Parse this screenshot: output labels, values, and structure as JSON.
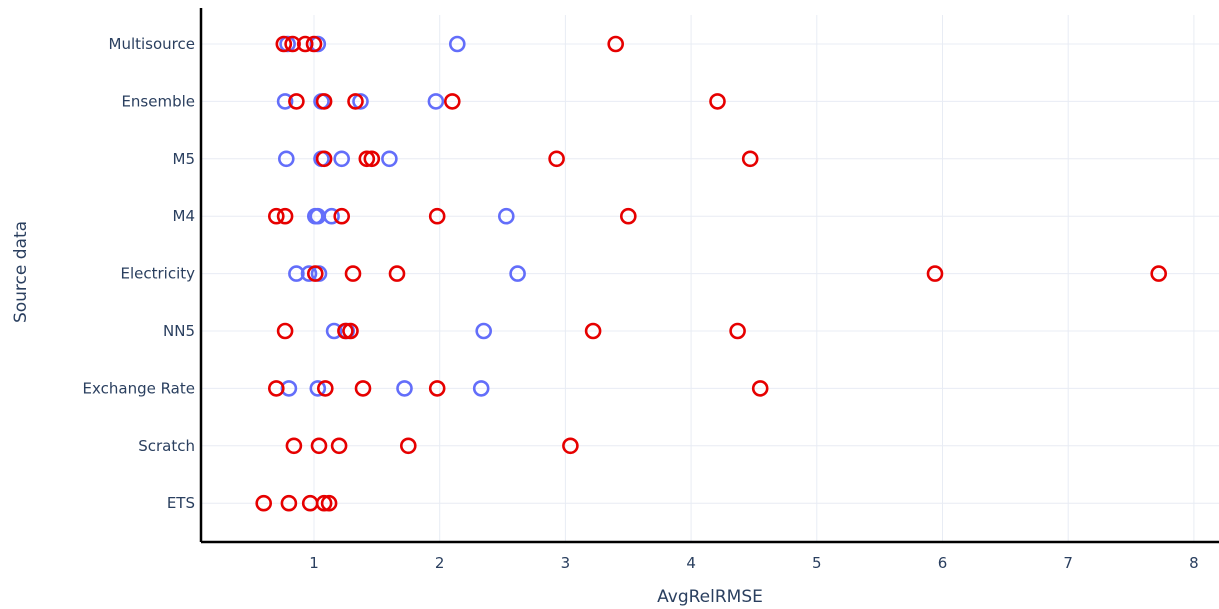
{
  "chart_data": {
    "type": "scatter",
    "title": "",
    "xlabel": "AvgRelRMSE",
    "ylabel": "Source data",
    "xlim": [
      0.1,
      8.2
    ],
    "x_ticks": [
      1,
      2,
      3,
      4,
      5,
      6,
      7,
      8
    ],
    "grid": true,
    "legend": "none",
    "categories": [
      "ETS",
      "Scratch",
      "Exchange Rate",
      "NN5",
      "Electricity",
      "M4",
      "M5",
      "Ensemble",
      "Multisource"
    ],
    "colors": {
      "blue": "#636efa",
      "red": "#e60000"
    },
    "series": [
      {
        "color": "#636efa",
        "points": [
          {
            "category": "Multisource",
            "x": 0.79
          },
          {
            "category": "Multisource",
            "x": 1.03
          },
          {
            "category": "Multisource",
            "x": 2.14
          },
          {
            "category": "Ensemble",
            "x": 0.77
          },
          {
            "category": "Ensemble",
            "x": 1.06
          },
          {
            "category": "Ensemble",
            "x": 1.37
          },
          {
            "category": "Ensemble",
            "x": 1.97
          },
          {
            "category": "M5",
            "x": 0.78
          },
          {
            "category": "M5",
            "x": 1.06
          },
          {
            "category": "M5",
            "x": 1.22
          },
          {
            "category": "M5",
            "x": 1.6
          },
          {
            "category": "M4",
            "x": 1.01
          },
          {
            "category": "M4",
            "x": 1.03
          },
          {
            "category": "M4",
            "x": 1.14
          },
          {
            "category": "M4",
            "x": 2.53
          },
          {
            "category": "Electricity",
            "x": 0.86
          },
          {
            "category": "Electricity",
            "x": 0.96
          },
          {
            "category": "Electricity",
            "x": 1.04
          },
          {
            "category": "Electricity",
            "x": 2.62
          },
          {
            "category": "NN5",
            "x": 1.16
          },
          {
            "category": "NN5",
            "x": 1.26
          },
          {
            "category": "NN5",
            "x": 2.35
          },
          {
            "category": "Exchange Rate",
            "x": 0.8
          },
          {
            "category": "Exchange Rate",
            "x": 1.03
          },
          {
            "category": "Exchange Rate",
            "x": 1.72
          },
          {
            "category": "Exchange Rate",
            "x": 2.33
          }
        ]
      },
      {
        "color": "#e60000",
        "points": [
          {
            "category": "Multisource",
            "x": 0.76
          },
          {
            "category": "Multisource",
            "x": 0.83
          },
          {
            "category": "Multisource",
            "x": 0.93
          },
          {
            "category": "Multisource",
            "x": 1.0
          },
          {
            "category": "Multisource",
            "x": 3.4
          },
          {
            "category": "Ensemble",
            "x": 0.86
          },
          {
            "category": "Ensemble",
            "x": 1.08
          },
          {
            "category": "Ensemble",
            "x": 1.33
          },
          {
            "category": "Ensemble",
            "x": 2.1
          },
          {
            "category": "Ensemble",
            "x": 4.21
          },
          {
            "category": "M5",
            "x": 1.08
          },
          {
            "category": "M5",
            "x": 1.42
          },
          {
            "category": "M5",
            "x": 1.46
          },
          {
            "category": "M5",
            "x": 2.93
          },
          {
            "category": "M5",
            "x": 4.47
          },
          {
            "category": "M4",
            "x": 0.7
          },
          {
            "category": "M4",
            "x": 0.77
          },
          {
            "category": "M4",
            "x": 1.22
          },
          {
            "category": "M4",
            "x": 1.98
          },
          {
            "category": "M4",
            "x": 3.5
          },
          {
            "category": "Electricity",
            "x": 1.01
          },
          {
            "category": "Electricity",
            "x": 1.31
          },
          {
            "category": "Electricity",
            "x": 1.66
          },
          {
            "category": "Electricity",
            "x": 5.94
          },
          {
            "category": "Electricity",
            "x": 7.72
          },
          {
            "category": "NN5",
            "x": 0.77
          },
          {
            "category": "NN5",
            "x": 1.25
          },
          {
            "category": "NN5",
            "x": 1.29
          },
          {
            "category": "NN5",
            "x": 3.22
          },
          {
            "category": "NN5",
            "x": 4.37
          },
          {
            "category": "Exchange Rate",
            "x": 0.7
          },
          {
            "category": "Exchange Rate",
            "x": 1.09
          },
          {
            "category": "Exchange Rate",
            "x": 1.39
          },
          {
            "category": "Exchange Rate",
            "x": 1.98
          },
          {
            "category": "Exchange Rate",
            "x": 4.55
          },
          {
            "category": "Scratch",
            "x": 0.84
          },
          {
            "category": "Scratch",
            "x": 1.04
          },
          {
            "category": "Scratch",
            "x": 1.2
          },
          {
            "category": "Scratch",
            "x": 1.75
          },
          {
            "category": "Scratch",
            "x": 3.04
          },
          {
            "category": "ETS",
            "x": 0.6
          },
          {
            "category": "ETS",
            "x": 0.8
          },
          {
            "category": "ETS",
            "x": 0.97
          },
          {
            "category": "ETS",
            "x": 1.08
          },
          {
            "category": "ETS",
            "x": 1.12
          }
        ]
      }
    ]
  }
}
